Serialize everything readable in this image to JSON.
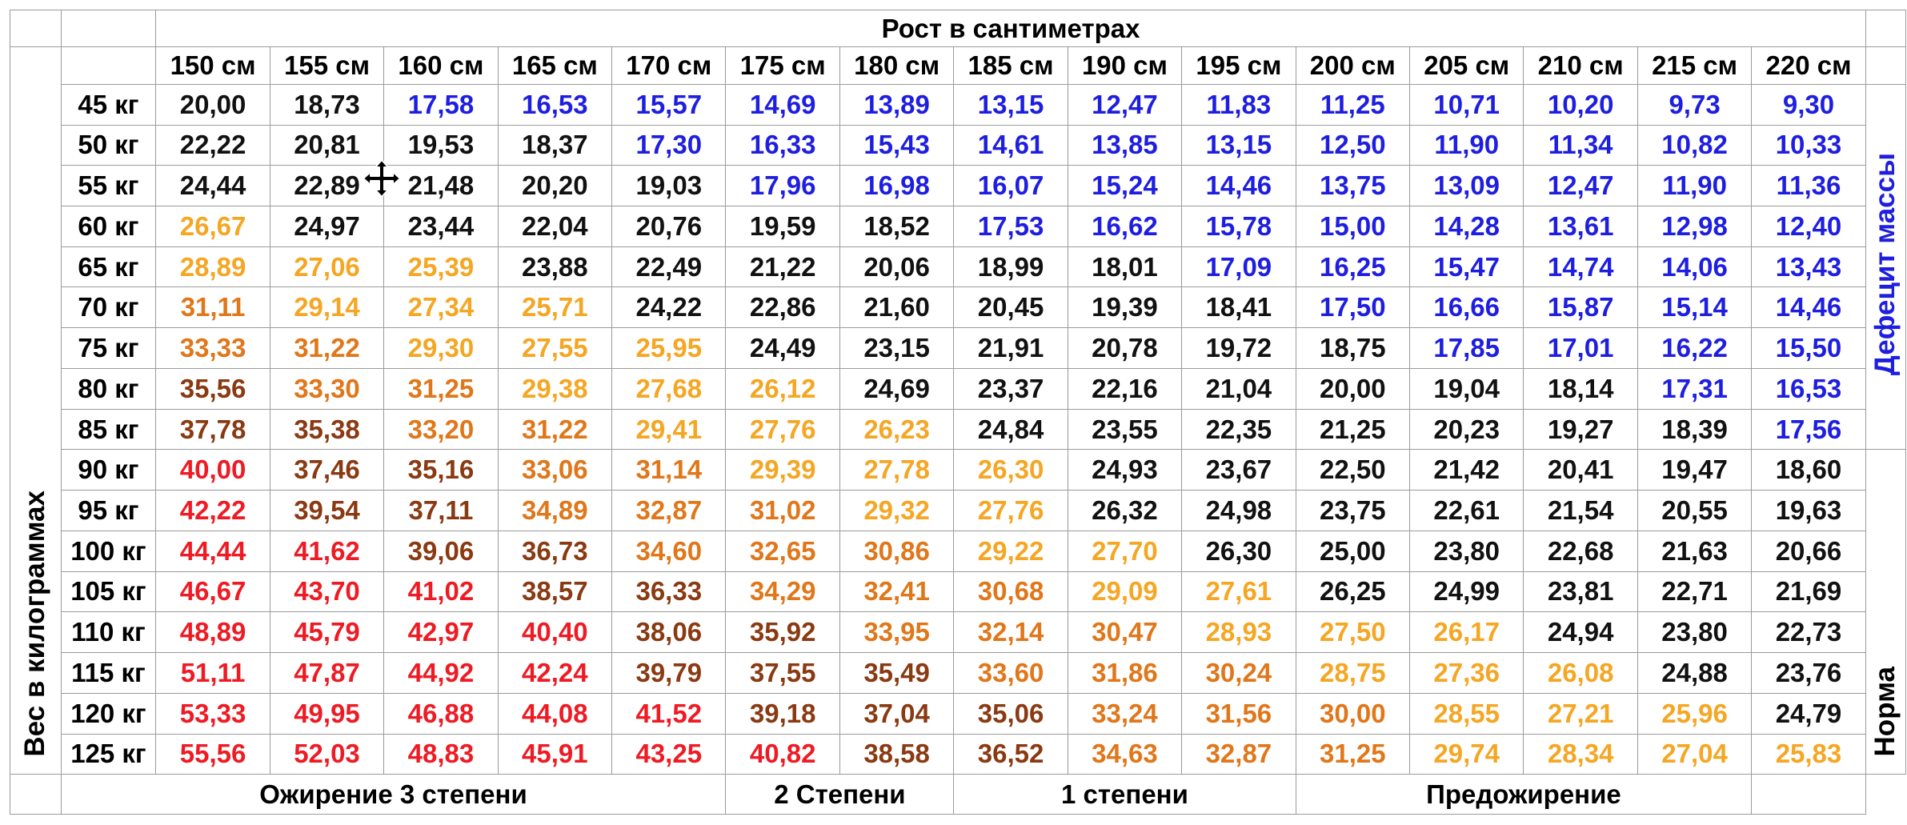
{
  "title": "Рост в сантиметрах",
  "weight_axis_label": "Вес в килограммах",
  "heights": [
    "150 см",
    "155 см",
    "160 см",
    "165 см",
    "170 см",
    "175 см",
    "180 см",
    "185 см",
    "190 см",
    "195 см",
    "200 см",
    "205 см",
    "210 см",
    "215 см",
    "220 см"
  ],
  "rows": [
    {
      "weight": "45 кг",
      "values": [
        "20,00",
        "18,73",
        "17,58",
        "16,53",
        "15,57",
        "14,69",
        "13,89",
        "13,15",
        "12,47",
        "11,83",
        "11,25",
        "10,71",
        "10,20",
        "9,73",
        "9,30"
      ],
      "classes": [
        "black",
        "black",
        "blue",
        "blue",
        "blue",
        "blue",
        "blue",
        "blue",
        "blue",
        "blue",
        "blue",
        "blue",
        "blue",
        "blue",
        "blue"
      ]
    },
    {
      "weight": "50 кг",
      "values": [
        "22,22",
        "20,81",
        "19,53",
        "18,37",
        "17,30",
        "16,33",
        "15,43",
        "14,61",
        "13,85",
        "13,15",
        "12,50",
        "11,90",
        "11,34",
        "10,82",
        "10,33"
      ],
      "classes": [
        "black",
        "black",
        "black",
        "black",
        "blue",
        "blue",
        "blue",
        "blue",
        "blue",
        "blue",
        "blue",
        "blue",
        "blue",
        "blue",
        "blue"
      ]
    },
    {
      "weight": "55 кг",
      "values": [
        "24,44",
        "22,89",
        "21,48",
        "20,20",
        "19,03",
        "17,96",
        "16,98",
        "16,07",
        "15,24",
        "14,46",
        "13,75",
        "13,09",
        "12,47",
        "11,90",
        "11,36"
      ],
      "classes": [
        "black",
        "black",
        "black",
        "black",
        "black",
        "blue",
        "blue",
        "blue",
        "blue",
        "blue",
        "blue",
        "blue",
        "blue",
        "blue",
        "blue"
      ]
    },
    {
      "weight": "60 кг",
      "values": [
        "26,67",
        "24,97",
        "23,44",
        "22,04",
        "20,76",
        "19,59",
        "18,52",
        "17,53",
        "16,62",
        "15,78",
        "15,00",
        "14,28",
        "13,61",
        "12,98",
        "12,40"
      ],
      "classes": [
        "yellow",
        "black",
        "black",
        "black",
        "black",
        "black",
        "black",
        "blue",
        "blue",
        "blue",
        "blue",
        "blue",
        "blue",
        "blue",
        "blue"
      ]
    },
    {
      "weight": "65 кг",
      "values": [
        "28,89",
        "27,06",
        "25,39",
        "23,88",
        "22,49",
        "21,22",
        "20,06",
        "18,99",
        "18,01",
        "17,09",
        "16,25",
        "15,47",
        "14,74",
        "14,06",
        "13,43"
      ],
      "classes": [
        "yellow",
        "yellow",
        "yellow",
        "black",
        "black",
        "black",
        "black",
        "black",
        "black",
        "blue",
        "blue",
        "blue",
        "blue",
        "blue",
        "blue"
      ]
    },
    {
      "weight": "70 кг",
      "values": [
        "31,11",
        "29,14",
        "27,34",
        "25,71",
        "24,22",
        "22,86",
        "21,60",
        "20,45",
        "19,39",
        "18,41",
        "17,50",
        "16,66",
        "15,87",
        "15,14",
        "14,46"
      ],
      "classes": [
        "orange",
        "yellow",
        "yellow",
        "yellow",
        "black",
        "black",
        "black",
        "black",
        "black",
        "black",
        "blue",
        "blue",
        "blue",
        "blue",
        "blue"
      ]
    },
    {
      "weight": "75 кг",
      "values": [
        "33,33",
        "31,22",
        "29,30",
        "27,55",
        "25,95",
        "24,49",
        "23,15",
        "21,91",
        "20,78",
        "19,72",
        "18,75",
        "17,85",
        "17,01",
        "16,22",
        "15,50"
      ],
      "classes": [
        "orange",
        "orange",
        "yellow",
        "yellow",
        "yellow",
        "black",
        "black",
        "black",
        "black",
        "black",
        "black",
        "blue",
        "blue",
        "blue",
        "blue"
      ]
    },
    {
      "weight": "80 кг",
      "values": [
        "35,56",
        "33,30",
        "31,25",
        "29,38",
        "27,68",
        "26,12",
        "24,69",
        "23,37",
        "22,16",
        "21,04",
        "20,00",
        "19,04",
        "18,14",
        "17,31",
        "16,53"
      ],
      "classes": [
        "brown",
        "orange",
        "orange",
        "yellow",
        "yellow",
        "yellow",
        "black",
        "black",
        "black",
        "black",
        "black",
        "black",
        "black",
        "blue",
        "blue"
      ]
    },
    {
      "weight": "85 кг",
      "values": [
        "37,78",
        "35,38",
        "33,20",
        "31,22",
        "29,41",
        "27,76",
        "26,23",
        "24,84",
        "23,55",
        "22,35",
        "21,25",
        "20,23",
        "19,27",
        "18,39",
        "17,56"
      ],
      "classes": [
        "brown",
        "brown",
        "orange",
        "orange",
        "yellow",
        "yellow",
        "yellow",
        "black",
        "black",
        "black",
        "black",
        "black",
        "black",
        "black",
        "blue"
      ]
    },
    {
      "weight": "90 кг",
      "values": [
        "40,00",
        "37,46",
        "35,16",
        "33,06",
        "31,14",
        "29,39",
        "27,78",
        "26,30",
        "24,93",
        "23,67",
        "22,50",
        "21,42",
        "20,41",
        "19,47",
        "18,60"
      ],
      "classes": [
        "red",
        "brown",
        "brown",
        "orange",
        "orange",
        "yellow",
        "yellow",
        "yellow",
        "black",
        "black",
        "black",
        "black",
        "black",
        "black",
        "black"
      ]
    },
    {
      "weight": "95 кг",
      "values": [
        "42,22",
        "39,54",
        "37,11",
        "34,89",
        "32,87",
        "31,02",
        "29,32",
        "27,76",
        "26,32",
        "24,98",
        "23,75",
        "22,61",
        "21,54",
        "20,55",
        "19,63"
      ],
      "classes": [
        "red",
        "brown",
        "brown",
        "orange",
        "orange",
        "orange",
        "yellow",
        "yellow",
        "black",
        "black",
        "black",
        "black",
        "black",
        "black",
        "black"
      ]
    },
    {
      "weight": "100 кг",
      "values": [
        "44,44",
        "41,62",
        "39,06",
        "36,73",
        "34,60",
        "32,65",
        "30,86",
        "29,22",
        "27,70",
        "26,30",
        "25,00",
        "23,80",
        "22,68",
        "21,63",
        "20,66"
      ],
      "classes": [
        "red",
        "red",
        "brown",
        "brown",
        "orange",
        "orange",
        "orange",
        "yellow",
        "yellow",
        "black",
        "black",
        "black",
        "black",
        "black",
        "black"
      ]
    },
    {
      "weight": "105 кг",
      "values": [
        "46,67",
        "43,70",
        "41,02",
        "38,57",
        "36,33",
        "34,29",
        "32,41",
        "30,68",
        "29,09",
        "27,61",
        "26,25",
        "24,99",
        "23,81",
        "22,71",
        "21,69"
      ],
      "classes": [
        "red",
        "red",
        "red",
        "brown",
        "brown",
        "orange",
        "orange",
        "orange",
        "yellow",
        "yellow",
        "black",
        "black",
        "black",
        "black",
        "black"
      ]
    },
    {
      "weight": "110 кг",
      "values": [
        "48,89",
        "45,79",
        "42,97",
        "40,40",
        "38,06",
        "35,92",
        "33,95",
        "32,14",
        "30,47",
        "28,93",
        "27,50",
        "26,17",
        "24,94",
        "23,80",
        "22,73"
      ],
      "classes": [
        "red",
        "red",
        "red",
        "red",
        "brown",
        "brown",
        "orange",
        "orange",
        "orange",
        "yellow",
        "yellow",
        "yellow",
        "black",
        "black",
        "black"
      ]
    },
    {
      "weight": "115 кг",
      "values": [
        "51,11",
        "47,87",
        "44,92",
        "42,24",
        "39,79",
        "37,55",
        "35,49",
        "33,60",
        "31,86",
        "30,24",
        "28,75",
        "27,36",
        "26,08",
        "24,88",
        "23,76"
      ],
      "classes": [
        "red",
        "red",
        "red",
        "red",
        "brown",
        "brown",
        "brown",
        "orange",
        "orange",
        "orange",
        "yellow",
        "yellow",
        "yellow",
        "black",
        "black"
      ]
    },
    {
      "weight": "120 кг",
      "values": [
        "53,33",
        "49,95",
        "46,88",
        "44,08",
        "41,52",
        "39,18",
        "37,04",
        "35,06",
        "33,24",
        "31,56",
        "30,00",
        "28,55",
        "27,21",
        "25,96",
        "24,79"
      ],
      "classes": [
        "red",
        "red",
        "red",
        "red",
        "red",
        "brown",
        "brown",
        "brown",
        "orange",
        "orange",
        "orange",
        "yellow",
        "yellow",
        "yellow",
        "black"
      ]
    },
    {
      "weight": "125 кг",
      "values": [
        "55,56",
        "52,03",
        "48,83",
        "45,91",
        "43,25",
        "40,82",
        "38,58",
        "36,52",
        "34,63",
        "32,87",
        "31,25",
        "29,74",
        "28,34",
        "27,04",
        "25,83"
      ],
      "classes": [
        "red",
        "red",
        "red",
        "red",
        "red",
        "red",
        "brown",
        "brown",
        "orange",
        "orange",
        "orange",
        "yellow",
        "yellow",
        "yellow",
        "yellow"
      ]
    }
  ],
  "side_labels": {
    "deficit": "Дефецит массы",
    "norm": "Норма"
  },
  "footer": [
    {
      "label": "Ожирение 3 степени",
      "span": 6
    },
    {
      "label": "2 Степени",
      "span": 2
    },
    {
      "label": "1 степени",
      "span": 3
    },
    {
      "label": "Предожирение",
      "span": 4
    }
  ],
  "colors": {
    "black": "#111111",
    "blue": "#1e1ee0",
    "yellow": "#f5a623",
    "orange": "#e0771a",
    "brown": "#8a3a12",
    "red": "#ee1b24",
    "grid": "#9a9a9a"
  },
  "cursor": "move-cursor-icon"
}
